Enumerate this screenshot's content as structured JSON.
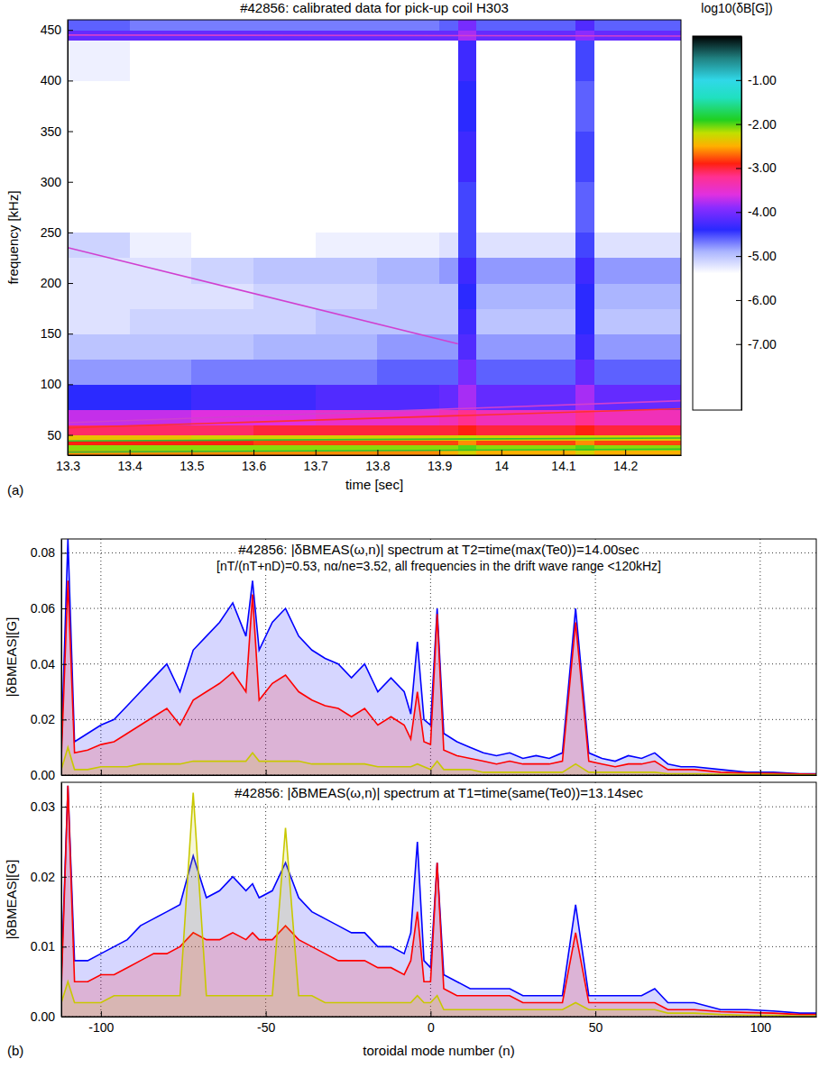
{
  "chart_data": [
    {
      "type": "heatmap",
      "title": "#42856: calibrated data for pick-up coil H303",
      "panel_label": "(a)",
      "xlabel": "time [sec]",
      "ylabel": "frequency [kHz]",
      "xlim": [
        13.3,
        14.29
      ],
      "xticks": [
        13.3,
        13.4,
        13.5,
        13.6,
        13.7,
        13.8,
        13.9,
        14,
        14.1,
        14.2
      ],
      "ylim": [
        30,
        460
      ],
      "yticks": [
        50,
        100,
        150,
        200,
        250,
        300,
        350,
        400,
        450
      ],
      "x_edges": [
        13.3,
        13.4,
        13.5,
        13.6,
        13.7,
        13.8,
        13.9,
        13.93,
        13.96,
        14.12,
        14.15,
        14.3
      ],
      "y_edges": [
        30,
        35,
        40,
        45,
        50,
        60,
        75,
        100,
        125,
        150,
        175,
        200,
        225,
        250,
        300,
        350,
        400,
        440,
        450,
        460
      ],
      "cells": [
        [
          -2.6,
          -2.6,
          -2.6,
          -2.6,
          -2.6,
          -2.6,
          -2.5,
          -2.3,
          -2.5,
          -2.3,
          -2.5
        ],
        [
          -2.1,
          -2.1,
          -2.1,
          -2.1,
          -2.1,
          -2.1,
          -2.1,
          -2.0,
          -2.1,
          -2.0,
          -2.1
        ],
        [
          -2.9,
          -2.9,
          -2.9,
          -2.8,
          -2.8,
          -2.8,
          -2.8,
          -2.6,
          -2.8,
          -2.6,
          -2.8
        ],
        [
          -2.4,
          -2.4,
          -2.3,
          -2.3,
          -2.3,
          -2.3,
          -2.3,
          -2.2,
          -2.3,
          -2.2,
          -2.3
        ],
        [
          -3.1,
          -3.1,
          -3.1,
          -3.0,
          -3.0,
          -3.0,
          -3.0,
          -2.9,
          -3.0,
          -2.9,
          -3.0
        ],
        [
          -3.7,
          -3.7,
          -3.6,
          -3.6,
          -3.5,
          -3.5,
          -3.4,
          -3.2,
          -3.4,
          -3.2,
          -3.4
        ],
        [
          -4.4,
          -4.4,
          -4.3,
          -4.3,
          -4.2,
          -4.2,
          -4.1,
          -3.8,
          -4.1,
          -3.8,
          -4.1
        ],
        [
          -4.8,
          -4.8,
          -4.7,
          -4.7,
          -4.7,
          -4.6,
          -4.6,
          -4.0,
          -4.6,
          -4.1,
          -4.6
        ],
        [
          -5.0,
          -5.0,
          -5.0,
          -4.9,
          -4.9,
          -4.8,
          -4.8,
          -4.2,
          -4.8,
          -4.3,
          -4.8
        ],
        [
          -5.2,
          -5.1,
          -5.1,
          -5.1,
          -5.0,
          -5.0,
          -5.0,
          -4.3,
          -5.0,
          -4.4,
          -5.0
        ],
        [
          -5.2,
          -5.2,
          -5.2,
          -5.1,
          -5.1,
          -5.0,
          -5.0,
          -4.4,
          -4.9,
          -4.4,
          -4.9
        ],
        [
          -5.2,
          -5.2,
          -5.1,
          -5.0,
          -5.0,
          -4.9,
          -4.8,
          -4.3,
          -4.8,
          -4.3,
          -4.8
        ],
        [
          -5.1,
          -5.3,
          -5.4,
          -5.4,
          -5.3,
          -5.3,
          -5.2,
          -4.5,
          -5.2,
          -4.5,
          -5.2
        ],
        [
          -5.6,
          -5.7,
          -5.8,
          -5.8,
          -5.7,
          -5.7,
          -5.6,
          -4.5,
          -5.6,
          -4.6,
          -5.6
        ],
        [
          -5.8,
          -5.9,
          -5.9,
          -5.9,
          -5.9,
          -5.8,
          -5.8,
          -4.3,
          -5.8,
          -4.5,
          -5.8
        ],
        [
          -5.7,
          -5.8,
          -5.8,
          -5.8,
          -5.8,
          -5.8,
          -5.7,
          -4.4,
          -5.7,
          -4.6,
          -5.7
        ],
        [
          -5.3,
          -5.4,
          -5.5,
          -5.5,
          -5.5,
          -5.4,
          -5.4,
          -4.3,
          -5.4,
          -4.5,
          -5.4
        ],
        [
          -4.1,
          -4.1,
          -4.1,
          -4.1,
          -4.1,
          -4.1,
          -4.1,
          -3.8,
          -4.1,
          -3.9,
          -4.1
        ],
        [
          -4.6,
          -4.7,
          -4.7,
          -4.7,
          -4.7,
          -4.7,
          -4.6,
          -4.0,
          -4.6,
          -4.2,
          -4.6
        ]
      ],
      "colorbar": {
        "label": "log10(δB[G])",
        "range": [
          -8.5,
          0
        ],
        "ticks": [
          {
            "value": -1,
            "label": "-1.00"
          },
          {
            "value": -2,
            "label": "-2.00"
          },
          {
            "value": -3,
            "label": "-3.00"
          },
          {
            "value": -4,
            "label": "-4.00"
          },
          {
            "value": -5,
            "label": "-5.00"
          },
          {
            "value": -6,
            "label": "-6.00"
          },
          {
            "value": -7,
            "label": "-7.00"
          }
        ]
      },
      "lines": [
        {
          "x": [
            13.3,
            13.93
          ],
          "y": [
            235,
            140
          ],
          "color": "#d040d0"
        },
        {
          "x": [
            13.3,
            14.3
          ],
          "y": [
            445,
            444
          ],
          "color": "#d040d0"
        },
        {
          "x": [
            13.3,
            14.3
          ],
          "y": [
            57,
            76
          ],
          "color": "#ff3030"
        },
        {
          "x": [
            13.3,
            14.3
          ],
          "y": [
            62,
            84
          ],
          "color": "#d040d0"
        },
        {
          "x": [
            13.3,
            14.3
          ],
          "y": [
            44,
            47
          ],
          "color": "#30c030"
        },
        {
          "x": [
            13.3,
            14.3
          ],
          "y": [
            33,
            36
          ],
          "color": "#30c030"
        }
      ]
    },
    {
      "type": "line",
      "title": "#42856: |δBMEAS(ω,n)| spectrum at T2=time(max(Te0))=14.00sec",
      "subtitle": "[nT/(nT+nD)=0.53, nα/ne=3.52, all frequencies in the drift wave range <120kHz]",
      "ylabel": "|δBMEAS|[G]",
      "xlim": [
        -112,
        117
      ],
      "xticks": [
        -100,
        -50,
        0,
        50,
        100
      ],
      "ylim": [
        0,
        0.085
      ],
      "yticks": [
        {
          "value": 0,
          "label": "0.00"
        },
        {
          "value": 0.02,
          "label": "0.02"
        },
        {
          "value": 0.04,
          "label": "0.04"
        },
        {
          "value": 0.06,
          "label": "0.06"
        },
        {
          "value": 0.08,
          "label": "0.08"
        }
      ],
      "grid": true,
      "tick_labels": "y",
      "x": [
        -112,
        -110,
        -108,
        -104,
        -100,
        -96,
        -92,
        -88,
        -84,
        -80,
        -76,
        -72,
        -68,
        -64,
        -60,
        -56,
        -54,
        -52,
        -48,
        -44,
        -40,
        -36,
        -32,
        -28,
        -24,
        -20,
        -16,
        -12,
        -8,
        -6,
        -4,
        -2,
        0,
        2,
        4,
        8,
        12,
        16,
        20,
        24,
        28,
        32,
        36,
        40,
        44,
        48,
        52,
        56,
        60,
        64,
        68,
        72,
        76,
        80,
        88,
        96,
        104,
        112,
        117
      ],
      "series": [
        {
          "color": "#0000ff",
          "values": [
            0.01,
            0.085,
            0.012,
            0.015,
            0.018,
            0.02,
            0.025,
            0.03,
            0.035,
            0.04,
            0.03,
            0.045,
            0.05,
            0.055,
            0.062,
            0.05,
            0.07,
            0.045,
            0.055,
            0.06,
            0.05,
            0.045,
            0.042,
            0.04,
            0.035,
            0.04,
            0.03,
            0.035,
            0.03,
            0.022,
            0.048,
            0.02,
            0.018,
            0.06,
            0.015,
            0.012,
            0.01,
            0.008,
            0.007,
            0.008,
            0.006,
            0.007,
            0.006,
            0.008,
            0.06,
            0.008,
            0.006,
            0.005,
            0.007,
            0.006,
            0.008,
            0.004,
            0.003,
            0.003,
            0.002,
            0.001,
            0.001,
            0.0005,
            0.0005
          ]
        },
        {
          "color": "#ff0000",
          "values": [
            0.006,
            0.07,
            0.008,
            0.009,
            0.011,
            0.012,
            0.015,
            0.018,
            0.021,
            0.024,
            0.018,
            0.027,
            0.03,
            0.033,
            0.037,
            0.03,
            0.065,
            0.027,
            0.033,
            0.036,
            0.03,
            0.027,
            0.025,
            0.024,
            0.021,
            0.024,
            0.018,
            0.021,
            0.018,
            0.013,
            0.03,
            0.012,
            0.011,
            0.058,
            0.009,
            0.007,
            0.006,
            0.005,
            0.004,
            0.005,
            0.004,
            0.004,
            0.004,
            0.005,
            0.055,
            0.005,
            0.004,
            0.003,
            0.004,
            0.004,
            0.005,
            0.002,
            0.002,
            0.002,
            0.001,
            0.0007,
            0.0006,
            0.0004,
            0.0003
          ]
        },
        {
          "color": "#c8c800",
          "values": [
            0.002,
            0.01,
            0.002,
            0.002,
            0.003,
            0.003,
            0.003,
            0.004,
            0.004,
            0.004,
            0.004,
            0.005,
            0.005,
            0.005,
            0.005,
            0.005,
            0.008,
            0.005,
            0.005,
            0.005,
            0.005,
            0.004,
            0.004,
            0.004,
            0.004,
            0.004,
            0.003,
            0.003,
            0.003,
            0.003,
            0.004,
            0.003,
            0.002,
            0.005,
            0.002,
            0.002,
            0.002,
            0.001,
            0.001,
            0.001,
            0.001,
            0.001,
            0.001,
            0.001,
            0.004,
            0.001,
            0.001,
            0.001,
            0.001,
            0.001,
            0.001,
            0.0005,
            0.0005,
            0.0005,
            0.0003,
            0.0002,
            0.0002,
            0.0001,
            0.0001
          ]
        }
      ]
    },
    {
      "type": "line",
      "title": "#42856: |δBMEAS(ω,n)| spectrum at T1=time(same(Te0))=13.14sec",
      "panel_label": "(b)",
      "xlabel": "toroidal mode number (n)",
      "ylabel": "|δBMEAS|[G]",
      "xlim": [
        -112,
        117
      ],
      "xticks": [
        -100,
        -50,
        0,
        50,
        100
      ],
      "ylim": [
        0,
        0.0335
      ],
      "yticks": [
        {
          "value": 0,
          "label": "0.00"
        },
        {
          "value": 0.01,
          "label": "0.01"
        },
        {
          "value": 0.02,
          "label": "0.02"
        },
        {
          "value": 0.03,
          "label": "0.03"
        }
      ],
      "grid": true,
      "x": [
        -112,
        -110,
        -108,
        -104,
        -100,
        -96,
        -92,
        -88,
        -84,
        -80,
        -76,
        -72,
        -68,
        -64,
        -60,
        -56,
        -54,
        -52,
        -48,
        -44,
        -40,
        -36,
        -32,
        -28,
        -24,
        -20,
        -16,
        -12,
        -8,
        -6,
        -4,
        -2,
        0,
        2,
        4,
        8,
        12,
        16,
        20,
        24,
        28,
        32,
        36,
        40,
        44,
        48,
        52,
        56,
        60,
        64,
        68,
        72,
        76,
        80,
        88,
        96,
        104,
        112,
        117
      ],
      "series": [
        {
          "color": "#0000ff",
          "values": [
            0.006,
            0.033,
            0.008,
            0.008,
            0.009,
            0.01,
            0.011,
            0.013,
            0.014,
            0.015,
            0.016,
            0.023,
            0.017,
            0.018,
            0.02,
            0.018,
            0.019,
            0.017,
            0.018,
            0.022,
            0.017,
            0.015,
            0.014,
            0.013,
            0.012,
            0.012,
            0.01,
            0.01,
            0.009,
            0.012,
            0.025,
            0.008,
            0.007,
            0.022,
            0.006,
            0.005,
            0.004,
            0.004,
            0.004,
            0.004,
            0.003,
            0.003,
            0.003,
            0.003,
            0.016,
            0.003,
            0.003,
            0.003,
            0.003,
            0.003,
            0.004,
            0.002,
            0.002,
            0.002,
            0.001,
            0.001,
            0.0008,
            0.0005,
            0.0005
          ]
        },
        {
          "color": "#ff0000",
          "values": [
            0.004,
            0.033,
            0.005,
            0.005,
            0.006,
            0.006,
            0.007,
            0.008,
            0.009,
            0.009,
            0.01,
            0.012,
            0.011,
            0.011,
            0.012,
            0.011,
            0.012,
            0.011,
            0.011,
            0.013,
            0.011,
            0.01,
            0.009,
            0.008,
            0.008,
            0.008,
            0.007,
            0.007,
            0.006,
            0.008,
            0.015,
            0.005,
            0.005,
            0.022,
            0.004,
            0.003,
            0.003,
            0.003,
            0.003,
            0.003,
            0.002,
            0.002,
            0.002,
            0.002,
            0.012,
            0.002,
            0.002,
            0.002,
            0.002,
            0.002,
            0.002,
            0.001,
            0.001,
            0.001,
            0.0007,
            0.0006,
            0.0005,
            0.0003,
            0.0003
          ]
        },
        {
          "color": "#c8c800",
          "values": [
            0.002,
            0.005,
            0.002,
            0.002,
            0.002,
            0.003,
            0.003,
            0.003,
            0.003,
            0.003,
            0.003,
            0.032,
            0.003,
            0.003,
            0.003,
            0.003,
            0.003,
            0.003,
            0.003,
            0.027,
            0.003,
            0.003,
            0.002,
            0.002,
            0.002,
            0.002,
            0.002,
            0.002,
            0.002,
            0.002,
            0.003,
            0.002,
            0.002,
            0.003,
            0.001,
            0.001,
            0.001,
            0.001,
            0.001,
            0.001,
            0.001,
            0.001,
            0.001,
            0.001,
            0.002,
            0.001,
            0.001,
            0.001,
            0.001,
            0.001,
            0.001,
            0.0005,
            0.0005,
            0.0005,
            0.0003,
            0.0002,
            0.0002,
            0.0001,
            0.0001
          ]
        }
      ]
    }
  ]
}
